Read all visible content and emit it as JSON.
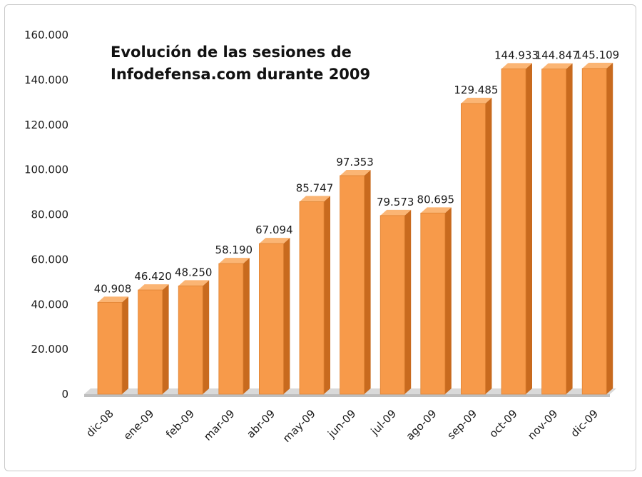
{
  "chart_data": {
    "type": "bar",
    "title": "Evolución de las sesiones de Infodefensa.com durante 2009",
    "title_lines": [
      "Evolución de las sesiones de",
      "Infodefensa.com durante 2009"
    ],
    "categories": [
      "dic-08",
      "ene-09",
      "feb-09",
      "mar-09",
      "abr-09",
      "may-09",
      "jun-09",
      "jul-09",
      "ago-09",
      "sep-09",
      "oct-09",
      "nov-09",
      "dic-09"
    ],
    "values": [
      40908,
      46420,
      48250,
      58190,
      67094,
      85747,
      97353,
      79573,
      80695,
      129485,
      144933,
      144847,
      145109
    ],
    "data_labels": [
      "40.908",
      "46.420",
      "48.250",
      "58.190",
      "67.094",
      "85.747",
      "97.353",
      "79.573",
      "80.695",
      "129.485",
      "144.933",
      "144.847",
      "145.109"
    ],
    "y_ticks": [
      0,
      20000,
      40000,
      60000,
      80000,
      100000,
      120000,
      140000,
      160000
    ],
    "y_tick_labels": [
      "0",
      "20.000",
      "40.000",
      "60.000",
      "80.000",
      "100.000",
      "120.000",
      "140.000",
      "160.000"
    ],
    "ylim": [
      0,
      160000
    ],
    "xlabel": "",
    "ylabel": "",
    "legend": "none",
    "grid": false,
    "colors": {
      "bar_front": "#f79a4a",
      "bar_side": "#c86a1e",
      "bar_top": "#fbb574",
      "floor": "#d9d9d9"
    }
  }
}
